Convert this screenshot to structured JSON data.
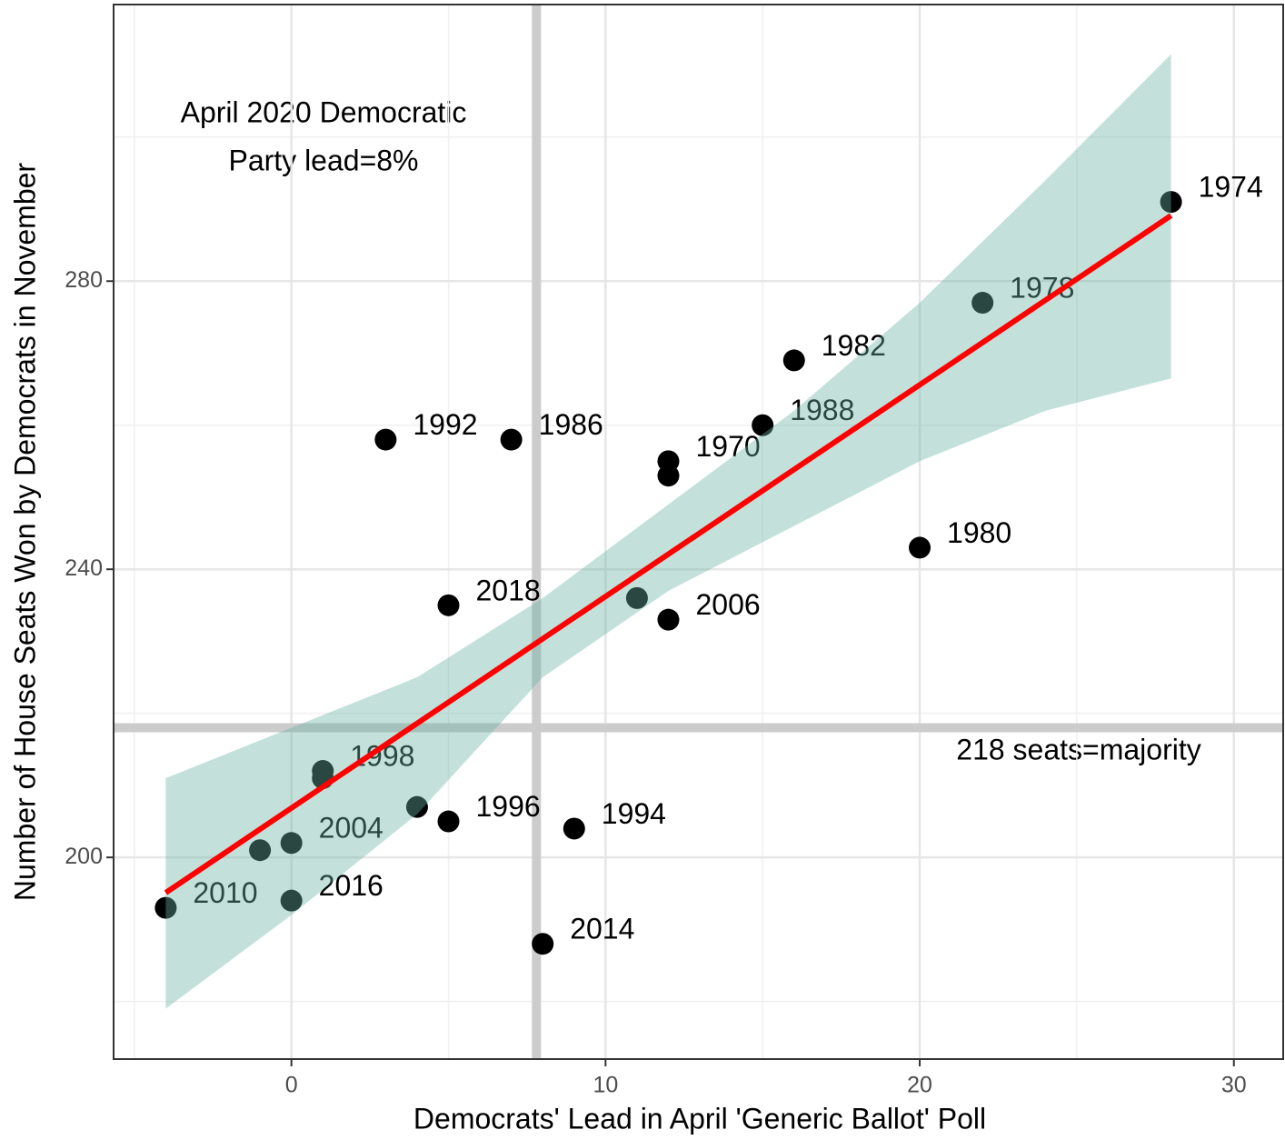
{
  "chart_data": {
    "type": "scatter",
    "x_label": "Democrats' Lead in April 'Generic Ballot' Poll",
    "y_label": "Number of House Seats Won by Democrats in November",
    "xlim": [
      -5.66,
      31.57
    ],
    "ylim": [
      172.0,
      318.4
    ],
    "xticks": [
      0,
      10,
      20,
      30
    ],
    "yticks": [
      200,
      240,
      280
    ],
    "x_minor_ticks": [
      -5,
      5,
      15,
      25
    ],
    "y_minor_ticks": [
      180,
      220,
      260,
      300
    ],
    "grid": true,
    "point_color": "#000000",
    "series": [
      {
        "x": [
          28,
          22,
          16,
          15,
          12,
          12,
          3,
          7,
          20,
          5,
          11,
          12,
          1,
          1,
          4,
          5,
          9,
          0,
          -1,
          -4,
          0,
          8
        ],
        "values": [
          291,
          277,
          269,
          260,
          255,
          253,
          258,
          258,
          243,
          235,
          236,
          233,
          212,
          211,
          207,
          205,
          204,
          202,
          201,
          193,
          194,
          188
        ],
        "labels": [
          "1974",
          "1978",
          "1982",
          "1988",
          "1970",
          null,
          "1992",
          "1986",
          "1980",
          "2018",
          null,
          "2006",
          "1998",
          null,
          null,
          "1996",
          "1994",
          "2004",
          null,
          "2010",
          "2016",
          "2014"
        ]
      }
    ],
    "fit": {
      "color": "#ff0000",
      "x": [
        -4,
        28
      ],
      "values": [
        195.1,
        289.1
      ]
    },
    "ci_band": {
      "color": "#69b3a2",
      "x": [
        -4,
        0,
        4,
        8,
        12,
        16,
        20,
        24,
        28
      ],
      "lower": [
        179,
        192,
        206,
        225,
        237,
        246,
        255,
        262,
        266.5
      ],
      "upper": [
        211,
        218,
        225,
        236,
        249,
        262,
        277,
        294,
        311.5
      ]
    },
    "vline": 7.8,
    "hline": 218,
    "ref_color": "#cccccc",
    "annotations": [
      "April 2020 Democratic",
      "Party lead=8%",
      "218 seats=majority"
    ]
  }
}
